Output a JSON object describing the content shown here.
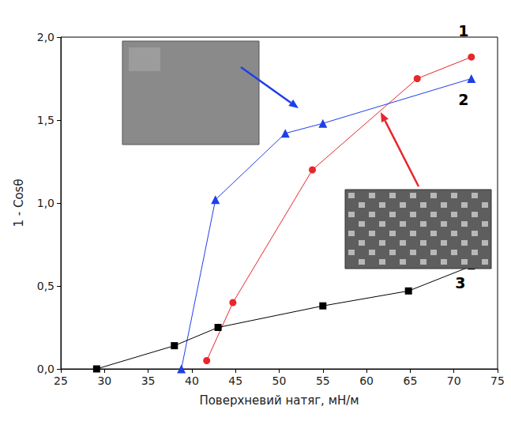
{
  "chart_data": {
    "type": "line",
    "x_label": "Поверхневий натяг, мН/м",
    "y_label": "1 - Cosθ",
    "xlim": [
      25,
      75
    ],
    "xticks": [
      25,
      30,
      35,
      40,
      45,
      50,
      55,
      60,
      65,
      70,
      75
    ],
    "ylim": [
      0,
      2.0
    ],
    "yticks": [
      {
        "value": 0,
        "label": "0,0"
      },
      {
        "value": 0.5,
        "label": "0,5"
      },
      {
        "value": 1.0,
        "label": "1,0"
      },
      {
        "value": 1.5,
        "label": "1,5"
      },
      {
        "value": 2.0,
        "label": "2,0"
      }
    ],
    "grid": false,
    "series": [
      {
        "name": "1",
        "color": "#e8262b",
        "marker": "circle",
        "line_style": "solid",
        "x": [
          41.7,
          44.7,
          53.8,
          65.8,
          72.0
        ],
        "values": [
          0.05,
          0.4,
          1.2,
          1.75,
          1.88
        ]
      },
      {
        "name": "2",
        "color": "#1f3fe8",
        "marker": "triangle",
        "line_style": "solid",
        "x": [
          38.8,
          42.7,
          50.7,
          55.0,
          72.0
        ],
        "values": [
          0.0,
          1.02,
          1.42,
          1.48,
          1.75
        ]
      },
      {
        "name": "3",
        "color": "#000000",
        "marker": "square",
        "line_style": "solid",
        "x": [
          29.1,
          38.0,
          43.0,
          55.0,
          64.8,
          72.0
        ],
        "values": [
          0.0,
          0.14,
          0.25,
          0.38,
          0.47,
          0.62
        ]
      }
    ]
  }
}
